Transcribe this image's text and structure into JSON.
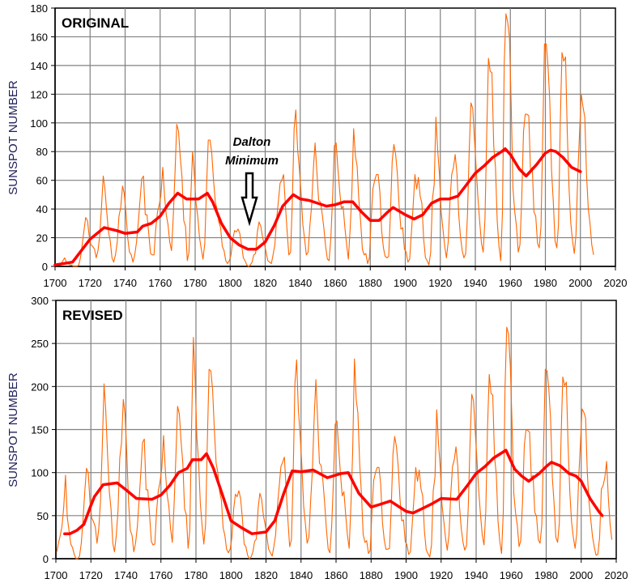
{
  "chart_data": [
    {
      "type": "line",
      "title": "ORIGINAL",
      "ylabel": "SUNSPOT NUMBER",
      "xlim": [
        1700,
        2020
      ],
      "ylim": [
        0,
        180
      ],
      "xticks": [
        1700,
        1720,
        1740,
        1760,
        1780,
        1800,
        1820,
        1840,
        1860,
        1880,
        1900,
        1920,
        1940,
        1960,
        1980,
        2000,
        2020
      ],
      "yticks": [
        0,
        20,
        40,
        60,
        80,
        100,
        120,
        140,
        160,
        180
      ],
      "grid": true,
      "colors": {
        "yearly": "#ff6600",
        "smoothed": "#ff0000",
        "grid": "#808080"
      },
      "annotation": {
        "lines": [
          "Dalton",
          "Minimum"
        ],
        "x": 1811,
        "icon": "down-arrow-icon"
      },
      "yearly": {
        "x_start": 1700,
        "values": [
          1,
          1,
          2,
          2,
          4,
          6,
          3,
          2,
          1,
          1,
          0,
          0,
          0,
          1,
          6,
          15,
          25,
          34,
          32,
          21,
          15,
          14,
          12,
          6,
          11,
          21,
          41,
          63,
          54,
          38,
          24,
          18,
          6,
          3,
          8,
          17,
          35,
          41,
          56,
          51,
          37,
          20,
          10,
          8,
          3,
          8,
          17,
          30,
          46,
          61,
          63,
          36,
          36,
          23,
          9,
          8,
          8,
          26,
          38,
          43,
          50,
          69,
          49,
          36,
          29,
          17,
          11,
          35,
          65,
          99,
          94,
          76,
          62,
          32,
          28,
          4,
          10,
          48,
          80,
          65,
          44,
          35,
          20,
          12,
          5,
          16,
          56,
          88,
          88,
          79,
          60,
          45,
          40,
          31,
          27,
          14,
          11,
          4,
          2,
          4,
          8,
          19,
          25,
          24,
          26,
          23,
          15,
          6,
          4,
          1,
          0,
          1,
          3,
          8,
          9,
          24,
          31,
          28,
          20,
          16,
          10,
          4,
          3,
          2,
          8,
          15,
          33,
          45,
          58,
          60,
          64,
          43,
          25,
          8,
          10,
          45,
          96,
          109,
          82,
          68,
          51,
          29,
          19,
          8,
          10,
          28,
          42,
          68,
          86,
          66,
          46,
          45,
          37,
          27,
          14,
          5,
          4,
          20,
          49,
          84,
          86,
          69,
          53,
          40,
          42,
          27,
          15,
          5,
          26,
          51,
          96,
          77,
          70,
          46,
          31,
          12,
          8,
          9,
          2,
          6,
          32,
          54,
          60,
          64,
          64,
          52,
          25,
          13,
          7,
          6,
          7,
          36,
          73,
          85,
          78,
          64,
          42,
          26,
          27,
          12,
          10,
          3,
          5,
          24,
          42,
          64,
          54,
          62,
          49,
          44,
          19,
          6,
          4,
          1,
          10,
          47,
          57,
          104,
          81,
          64,
          38,
          26,
          14,
          6,
          17,
          44,
          64,
          69,
          78,
          65,
          36,
          21,
          11,
          6,
          9,
          36,
          80,
          114,
          110,
          89,
          68,
          48,
          31,
          16,
          10,
          33,
          93,
          145,
          136,
          135,
          84,
          69,
          32,
          14,
          4,
          38,
          142,
          176,
          170,
          159,
          112,
          54,
          38,
          28,
          10,
          15,
          47,
          94,
          106,
          106,
          105,
          67,
          69,
          38,
          35,
          16,
          13,
          28,
          93,
          155,
          155,
          140,
          116,
          67,
          46,
          18,
          13,
          29,
          100,
          149,
          143,
          146,
          94,
          55,
          30,
          18,
          9,
          22,
          64,
          93,
          120,
          111,
          104,
          64,
          40,
          30,
          15,
          8
        ]
      },
      "smoothed": {
        "x": [
          1700,
          1710,
          1720,
          1728,
          1735,
          1740,
          1747,
          1750,
          1755,
          1760,
          1765,
          1770,
          1775,
          1782,
          1787,
          1790,
          1795,
          1800,
          1805,
          1810,
          1815,
          1820,
          1825,
          1830,
          1836,
          1840,
          1845,
          1850,
          1855,
          1860,
          1865,
          1870,
          1875,
          1880,
          1885,
          1890,
          1893,
          1900,
          1905,
          1910,
          1915,
          1920,
          1925,
          1930,
          1935,
          1940,
          1945,
          1950,
          1955,
          1957,
          1960,
          1965,
          1969,
          1975,
          1980,
          1983,
          1986,
          1990,
          1995,
          2000
        ],
        "y": [
          1,
          3,
          19,
          27,
          25,
          23,
          24,
          28,
          30,
          35,
          44,
          51,
          47,
          47,
          51,
          45,
          30,
          20,
          15,
          12,
          12,
          17,
          28,
          42,
          50,
          47,
          46,
          44,
          42,
          43,
          45,
          45,
          38,
          32,
          32,
          38,
          41,
          36,
          33,
          36,
          44,
          47,
          47,
          49,
          57,
          65,
          70,
          76,
          80,
          82,
          78,
          68,
          63,
          71,
          79,
          81,
          80,
          76,
          69,
          66
        ]
      }
    },
    {
      "type": "line",
      "title": "REVISED",
      "ylabel": "SUNSPOT NUMBER",
      "xlim": [
        1700,
        2020
      ],
      "ylim": [
        0,
        300
      ],
      "xticks": [
        1700,
        1720,
        1740,
        1760,
        1780,
        1800,
        1820,
        1840,
        1860,
        1880,
        1900,
        1920,
        1940,
        1960,
        1980,
        2000,
        2020
      ],
      "yticks": [
        0,
        50,
        100,
        150,
        200,
        250,
        300
      ],
      "grid": true,
      "colors": {
        "yearly": "#ff6600",
        "smoothed": "#ff0000",
        "grid": "#808080"
      },
      "yearly": {
        "x_start": 1700,
        "values": [
          8,
          18,
          27,
          38,
          60,
          97,
          48,
          33,
          17,
          13,
          5,
          0,
          0,
          3,
          18,
          45,
          78,
          105,
          100,
          65,
          47,
          43,
          37,
          18,
          35,
          67,
          130,
          203,
          172,
          122,
          78,
          58,
          18,
          8,
          27,
          57,
          117,
          135,
          185,
          168,
          122,
          67,
          33,
          27,
          8,
          18,
          37,
          67,
          100,
          135,
          139,
          80,
          80,
          51,
          20,
          16,
          17,
          54,
          79,
          90,
          105,
          143,
          102,
          75,
          61,
          35,
          19,
          63,
          116,
          177,
          168,
          136,
          111,
          58,
          51,
          12,
          33,
          154,
          257,
          210,
          141,
          114,
          64,
          38,
          17,
          40,
          138,
          220,
          218,
          197,
          150,
          111,
          100,
          78,
          68,
          36,
          27,
          11,
          7,
          11,
          24,
          57,
          75,
          72,
          79,
          70,
          47,
          17,
          14,
          4,
          0,
          2,
          8,
          20,
          23,
          59,
          76,
          69,
          50,
          40,
          26,
          11,
          7,
          3,
          14,
          28,
          61,
          83,
          107,
          112,
          118,
          80,
          46,
          14,
          22,
          95,
          203,
          231,
          172,
          143,
          108,
          61,
          40,
          18,
          25,
          67,
          103,
          164,
          208,
          161,
          111,
          108,
          90,
          65,
          34,
          11,
          7,
          38,
          91,
          156,
          160,
          129,
          99,
          73,
          78,
          51,
          27,
          12,
          63,
          123,
          232,
          185,
          169,
          110,
          75,
          28,
          19,
          21,
          6,
          10,
          54,
          91,
          100,
          106,
          106,
          87,
          42,
          22,
          11,
          11,
          12,
          59,
          122,
          142,
          130,
          107,
          70,
          44,
          45,
          20,
          16,
          5,
          8,
          41,
          70,
          106,
          90,
          103,
          81,
          73,
          31,
          10,
          6,
          2,
          16,
          79,
          95,
          173,
          134,
          106,
          63,
          44,
          24,
          10,
          28,
          74,
          107,
          115,
          130,
          108,
          60,
          35,
          19,
          10,
          15,
          60,
          133,
          191,
          183,
          148,
          113,
          79,
          51,
          27,
          16,
          55,
          154,
          214,
          192,
          190,
          118,
          98,
          44,
          20,
          6,
          54,
          200,
          269,
          261,
          224,
          158,
          76,
          53,
          39,
          14,
          21,
          66,
          132,
          150,
          149,
          147,
          94,
          97,
          54,
          49,
          22,
          18,
          39,
          130,
          220,
          218,
          198,
          163,
          94,
          65,
          25,
          19,
          41,
          141,
          211,
          201,
          205,
          133,
          77,
          42,
          25,
          12,
          30,
          91,
          132,
          174,
          170,
          163,
          99,
          65,
          45,
          25,
          13,
          4,
          5,
          25,
          81,
          85,
          94,
          113,
          70,
          40,
          22
        ]
      },
      "smoothed": {
        "x": [
          1705,
          1708,
          1712,
          1716,
          1720,
          1722,
          1727,
          1735,
          1740,
          1746,
          1755,
          1760,
          1765,
          1770,
          1775,
          1778,
          1783,
          1786,
          1790,
          1795,
          1800,
          1806,
          1812,
          1820,
          1825,
          1830,
          1835,
          1840,
          1847,
          1855,
          1863,
          1867,
          1873,
          1880,
          1885,
          1891,
          1900,
          1904,
          1910,
          1915,
          1920,
          1929,
          1935,
          1940,
          1945,
          1950,
          1957,
          1962,
          1966,
          1970,
          1976,
          1980,
          1983,
          1988,
          1993,
          1997,
          2000,
          2005,
          2010,
          2012
        ],
        "y": [
          29,
          29,
          33,
          40,
          62,
          72,
          86,
          88,
          80,
          70,
          69,
          74,
          85,
          100,
          105,
          115,
          115,
          122,
          105,
          75,
          44,
          36,
          29,
          31,
          44,
          75,
          102,
          101,
          103,
          94,
          99,
          100,
          76,
          60,
          63,
          67,
          55,
          53,
          59,
          64,
          70,
          69,
          85,
          99,
          107,
          117,
          126,
          104,
          96,
          90,
          99,
          107,
          112,
          108,
          99,
          96,
          90,
          70,
          55,
          50
        ]
      }
    }
  ]
}
